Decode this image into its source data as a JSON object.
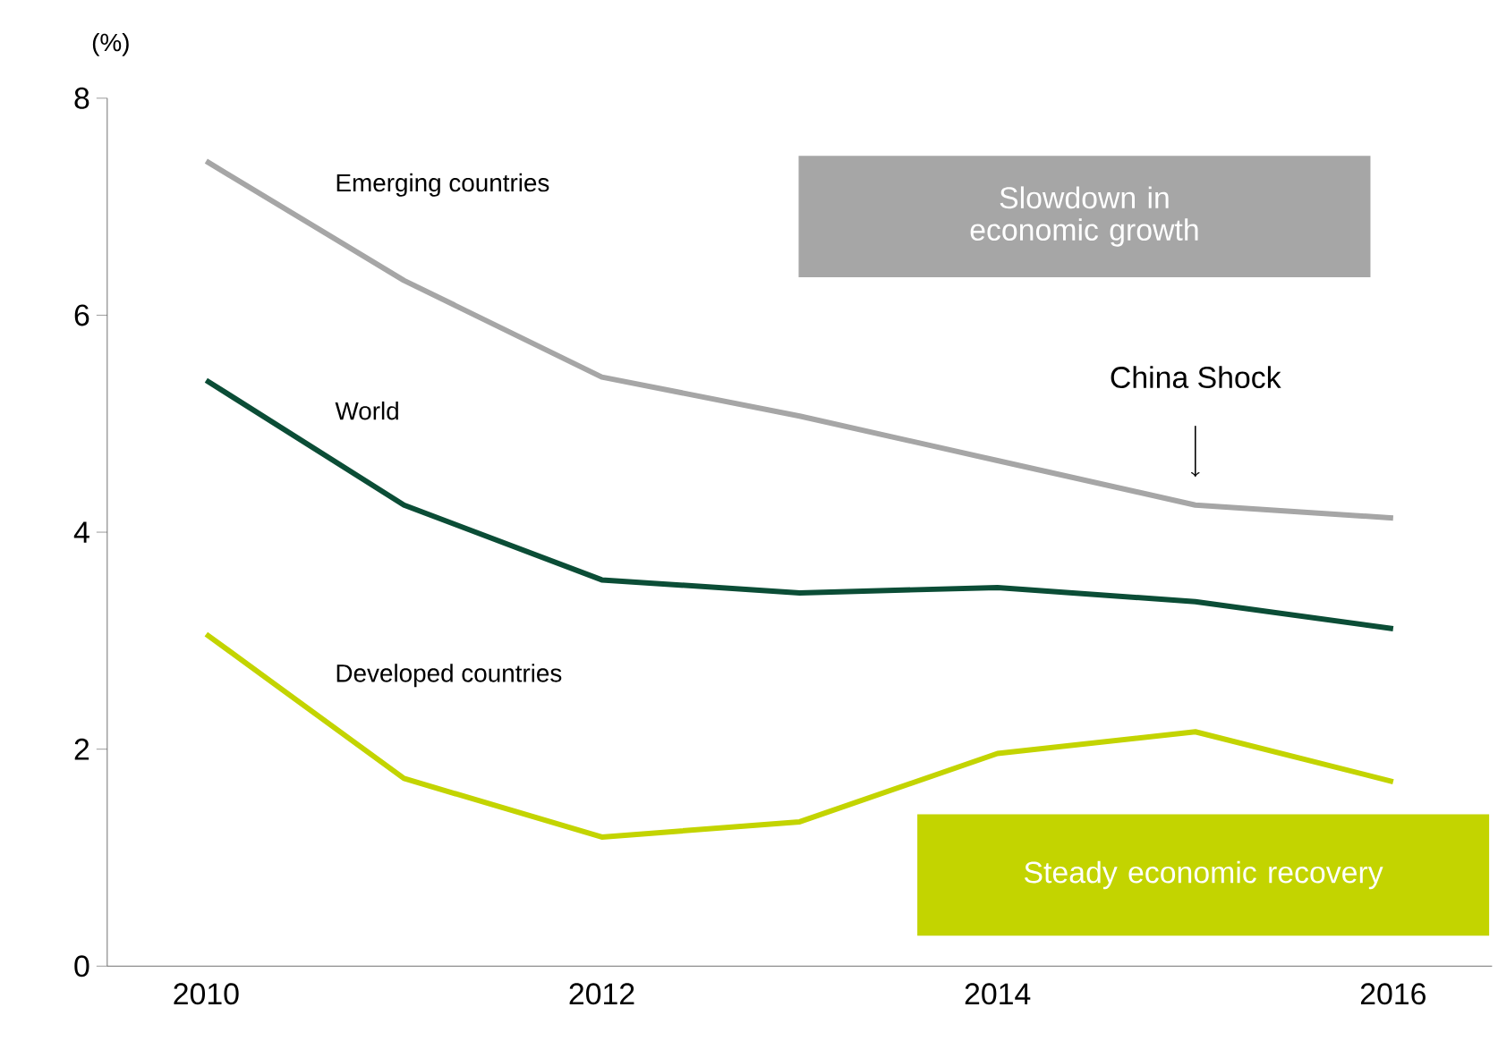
{
  "chart_data": {
    "type": "line",
    "ylabel": "(%)",
    "categories": [
      "2010",
      null,
      "2012",
      null,
      "2014",
      null,
      "2016"
    ],
    "series": [
      {
        "name": "Emerging countries",
        "color": "#a6a6a6",
        "values": [
          7.42,
          6.32,
          5.43,
          5.07,
          4.66,
          4.25,
          4.13
        ]
      },
      {
        "name": "World",
        "color": "#0b4d36",
        "values": [
          5.4,
          4.25,
          3.56,
          3.44,
          3.49,
          3.36,
          3.11
        ]
      },
      {
        "name": "Developed countries",
        "color": "#c3d400",
        "values": [
          3.06,
          1.73,
          1.19,
          1.33,
          1.96,
          2.16,
          1.7
        ]
      }
    ],
    "ylim": [
      0,
      8
    ],
    "yticks": [
      0,
      2,
      4,
      6,
      8
    ],
    "grid": false,
    "marker": "none",
    "line_style": "solid",
    "annotations": [
      "Slowdown in economic growth",
      "China Shock",
      "Steady economic recovery"
    ]
  }
}
